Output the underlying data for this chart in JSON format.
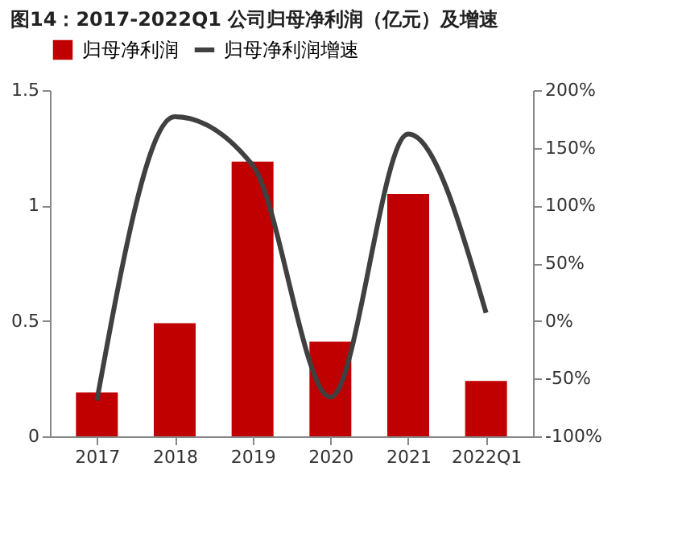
{
  "chart_data": {
    "type": "bar",
    "title": "图14：2017-2022Q1 公司归母净利润（亿元）及增速",
    "categories": [
      "2017",
      "2018",
      "2019",
      "2020",
      "2021",
      "2022Q1"
    ],
    "series": [
      {
        "name": "归母净利润",
        "color": "#c00000",
        "values": [
          0.19,
          0.49,
          1.19,
          0.41,
          1.05,
          0.24
        ]
      },
      {
        "name": "归母净利润增速",
        "type": "line",
        "axis": "y2",
        "color": "#404040",
        "values": [
          -69,
          177,
          135,
          -66,
          162,
          7
        ]
      }
    ],
    "ylim": [
      0,
      1.5
    ],
    "yticks": [
      0,
      0.5,
      1,
      1.5
    ],
    "y2lim": [
      -100,
      200
    ],
    "y2ticks": [
      {
        "value": -100,
        "label": "-100%"
      },
      {
        "value": -50,
        "label": "-50%"
      },
      {
        "value": 0,
        "label": "0%"
      },
      {
        "value": 50,
        "label": "50%"
      },
      {
        "value": 100,
        "label": "100%"
      },
      {
        "value": 150,
        "label": "150%"
      },
      {
        "value": 200,
        "label": "200%"
      }
    ],
    "legend": "top",
    "grid": false
  }
}
